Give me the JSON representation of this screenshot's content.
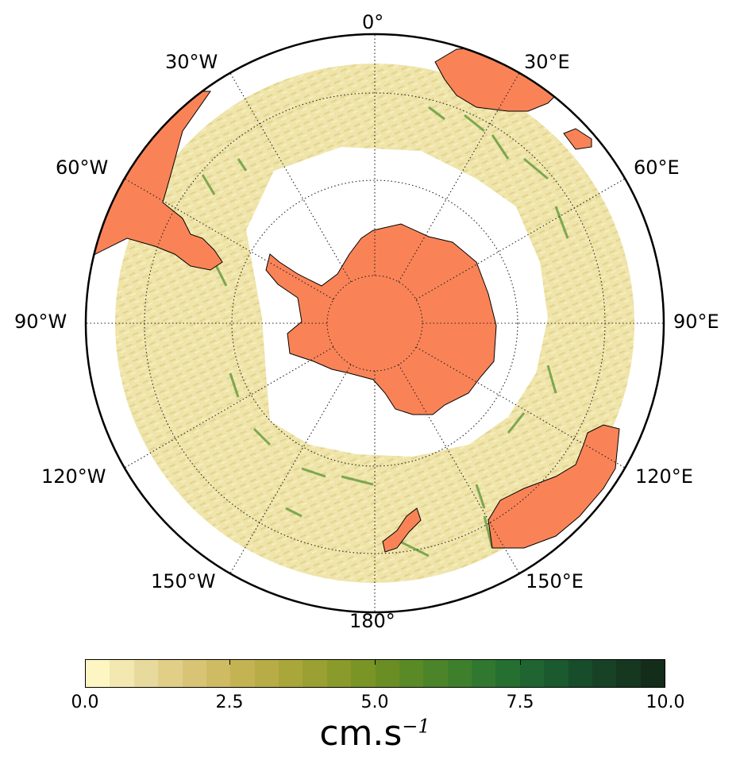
{
  "map": {
    "projection": "south-polar-stereographic",
    "land_color": "#f98357",
    "ocean_missing_color": "#ffffff",
    "graticule": "dotted",
    "longitude_labels": [
      "0°",
      "30°E",
      "60°E",
      "90°E",
      "120°E",
      "150°E",
      "180°",
      "150°W",
      "120°W",
      "90°W",
      "60°W",
      "30°W"
    ]
  },
  "colorbar": {
    "min": 0.0,
    "max": 10.0,
    "tick_labels": [
      "0.0",
      "2.5",
      "5.0",
      "7.5",
      "10.0"
    ],
    "units_base": "cm.s",
    "units_exponent": "−1",
    "colors": [
      "#fdf6c3",
      "#f3e8b0",
      "#e8da9c",
      "#e1cf88",
      "#d9c475",
      "#cfbb64",
      "#c4b353",
      "#b7ac45",
      "#a9a63a",
      "#9aa031",
      "#8a9a2b",
      "#7a9426",
      "#6a8e24",
      "#5a8a26",
      "#4b8429",
      "#3e7f2c",
      "#30782f",
      "#256f31",
      "#1f6431",
      "#1b592f",
      "#184d2b",
      "#174226",
      "#163720",
      "#142c1a"
    ]
  }
}
